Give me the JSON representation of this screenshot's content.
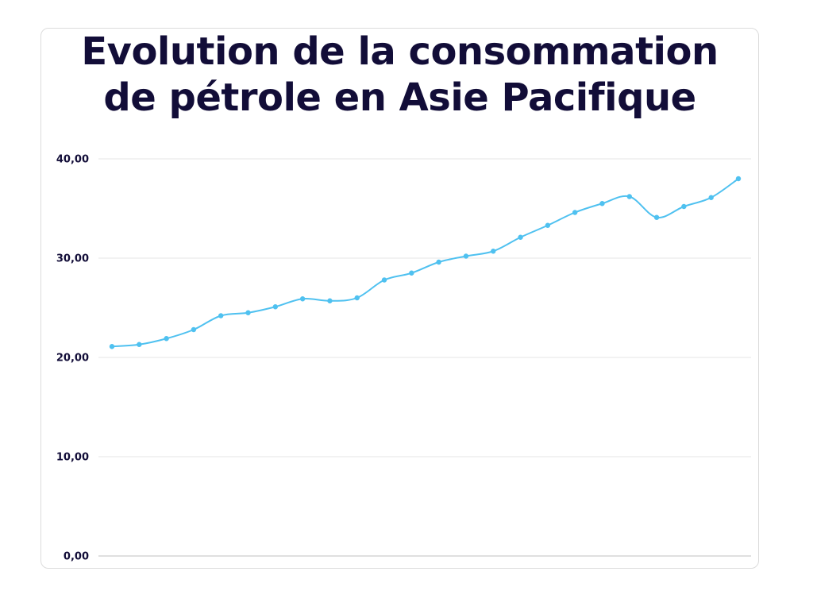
{
  "title_lines": [
    "Evolution de la consommation",
    "de pétrole en Asie Pacifique"
  ],
  "colors": {
    "line": "#4fc1f0",
    "title": "#120d38",
    "grid": "#e6e6e6",
    "axis": "#cccccc"
  },
  "chart_data": {
    "type": "line",
    "title": "Evolution de la consommation de pétrole en Asie Pacifique",
    "xlabel": "",
    "ylabel": "",
    "ylim": [
      0,
      40
    ],
    "grid": true,
    "y_ticks": [
      "0,00",
      "10,00",
      "20,00",
      "30,00",
      "40,00"
    ],
    "y_tick_values": [
      0,
      10,
      20,
      30,
      40
    ],
    "series": [
      {
        "values": [
          21.1,
          21.3,
          21.9,
          22.8,
          24.2,
          24.5,
          25.1,
          25.9,
          25.7,
          26.0,
          27.8,
          28.5,
          29.6,
          30.2,
          30.7,
          32.1,
          33.3,
          34.6,
          35.5,
          36.2,
          34.1,
          35.2,
          36.1,
          38.0
        ]
      }
    ]
  }
}
